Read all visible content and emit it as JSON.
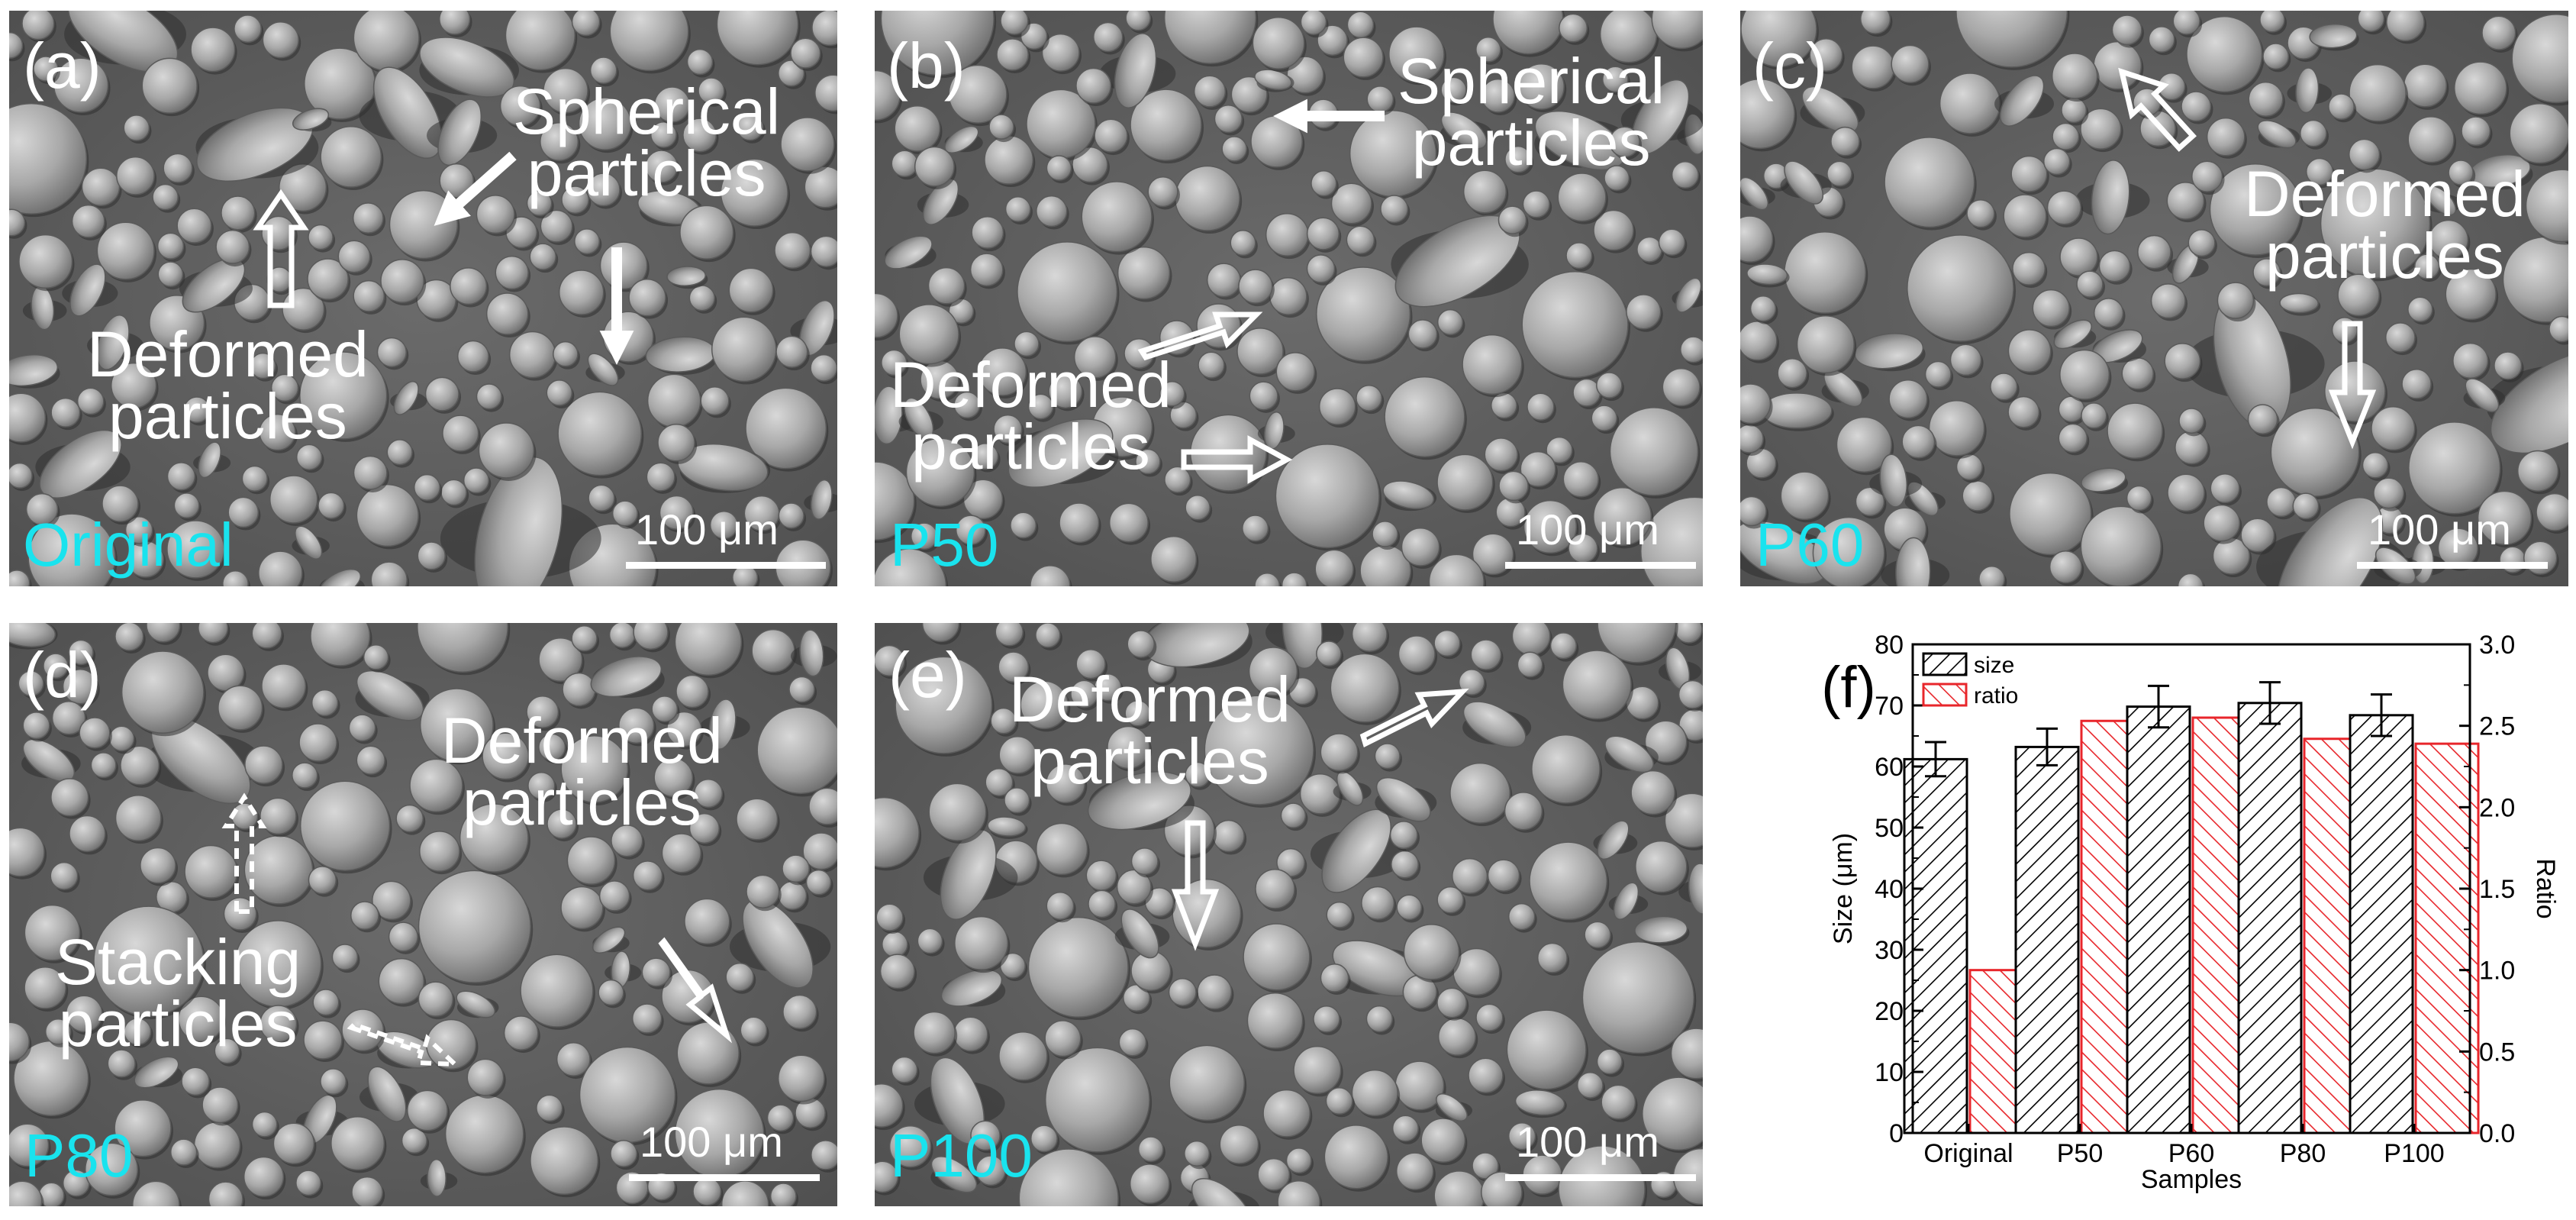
{
  "panels": [
    {
      "id": "a",
      "letter": "(a)",
      "sample": "Original",
      "scale": "100 μm",
      "annotations": [
        {
          "key": "spherical",
          "lines": [
            "Spherical",
            "particles"
          ]
        },
        {
          "key": "deformed",
          "lines": [
            "Deformed",
            "particles"
          ]
        }
      ]
    },
    {
      "id": "b",
      "letter": "(b)",
      "sample": "P50",
      "scale": "100 μm",
      "annotations": [
        {
          "key": "spherical",
          "lines": [
            "Spherical",
            "particles"
          ]
        },
        {
          "key": "deformed",
          "lines": [
            "Deformed",
            "particles"
          ]
        }
      ]
    },
    {
      "id": "c",
      "letter": "(c)",
      "sample": "P60",
      "scale": "100 μm",
      "annotations": [
        {
          "key": "deformed",
          "lines": [
            "Deformed",
            "particles"
          ]
        }
      ]
    },
    {
      "id": "d",
      "letter": "(d)",
      "sample": "P80",
      "scale": "100 μm",
      "annotations": [
        {
          "key": "deformed",
          "lines": [
            "Deformed",
            "particles"
          ]
        },
        {
          "key": "stacking",
          "lines": [
            "Stacking",
            "particles"
          ]
        }
      ]
    },
    {
      "id": "e",
      "letter": "(e)",
      "sample": "P100",
      "scale": "100 μm",
      "annotations": [
        {
          "key": "deformed",
          "lines": [
            "Deformed",
            "particles"
          ]
        }
      ]
    }
  ],
  "chart_data": {
    "type": "bar",
    "panel_letter": "(f)",
    "categories": [
      "Original",
      "P50",
      "P60",
      "P80",
      "P100"
    ],
    "xlabel": "Samples",
    "ylabel": "Size (μm)",
    "y2label": "Ratio",
    "ylim": [
      0,
      80
    ],
    "y2lim": [
      0,
      3.0
    ],
    "yticks": [
      "0",
      "10",
      "20",
      "30",
      "40",
      "50",
      "60",
      "70",
      "80"
    ],
    "y2ticks": [
      "0.0",
      "0.5",
      "1.0",
      "1.5",
      "2.0",
      "2.5",
      "3.0"
    ],
    "legend_position": "top-left",
    "series": [
      {
        "name": "size",
        "axis": "left",
        "values": [
          61.2,
          63.2,
          69.8,
          70.4,
          68.4
        ],
        "errors": [
          2.8,
          3.0,
          3.4,
          3.4,
          3.4
        ],
        "color": "#000000",
        "hatch": "forward-diagonal"
      },
      {
        "name": "ratio",
        "axis": "right",
        "values": [
          1.0,
          2.53,
          2.55,
          2.42,
          2.39
        ],
        "color": "#e8262b",
        "hatch": "back-diagonal"
      }
    ]
  }
}
